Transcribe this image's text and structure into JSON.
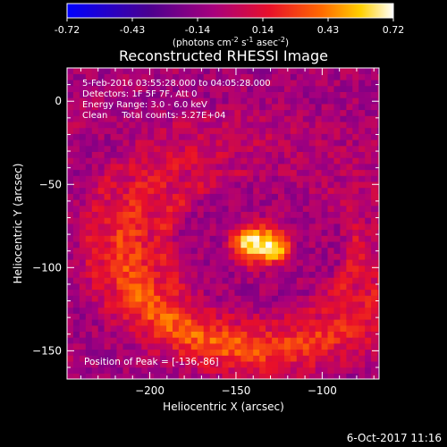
{
  "colorbar": {
    "ticks": [
      "-0.72",
      "-0.43",
      "-0.14",
      "0.14",
      "0.43",
      "0.72"
    ],
    "units_main": "(photons cm",
    "units_exp1": "-2",
    "units_mid": " s",
    "units_exp2": "-1",
    "units_end": " asec",
    "units_exp3": "-2",
    "units_close": ")"
  },
  "title": "Reconstructed RHESSI Image",
  "info": {
    "line1": "5-Feb-2016 03:55:28.000 to 04:05:28.000",
    "line2": "Detectors: 1F 5F 7F, Att 0",
    "line3": "Energy Range: 3.0 - 6.0 keV",
    "line4": "Clean     Total counts: 5.27E+04",
    "peak": "Position of Peak = [-136,-86]"
  },
  "footer": {
    "timestamp": "6-Oct-2017 11:16"
  },
  "chart_data": {
    "type": "heatmap",
    "title": "Reconstructed RHESSI Image",
    "xlabel": "Heliocentric X (arcsec)",
    "ylabel": "Heliocentric Y (arcsec)",
    "xlim": [
      -248,
      -67
    ],
    "ylim": [
      -167,
      20
    ],
    "xticks": [
      -200,
      -150,
      -100
    ],
    "yticks": [
      0,
      -50,
      -100,
      -150
    ],
    "colorbar_range": [
      -0.72,
      0.72
    ],
    "colormap": [
      "#0000ff",
      "#4a0090",
      "#a8007d",
      "#e8102a",
      "#ff6a00",
      "#ffd000",
      "#ffffff"
    ],
    "peak_position": [
      -136,
      -86
    ],
    "peak_value": 0.72,
    "total_counts": 52700,
    "energy_range_kev": [
      3.0,
      6.0
    ]
  }
}
